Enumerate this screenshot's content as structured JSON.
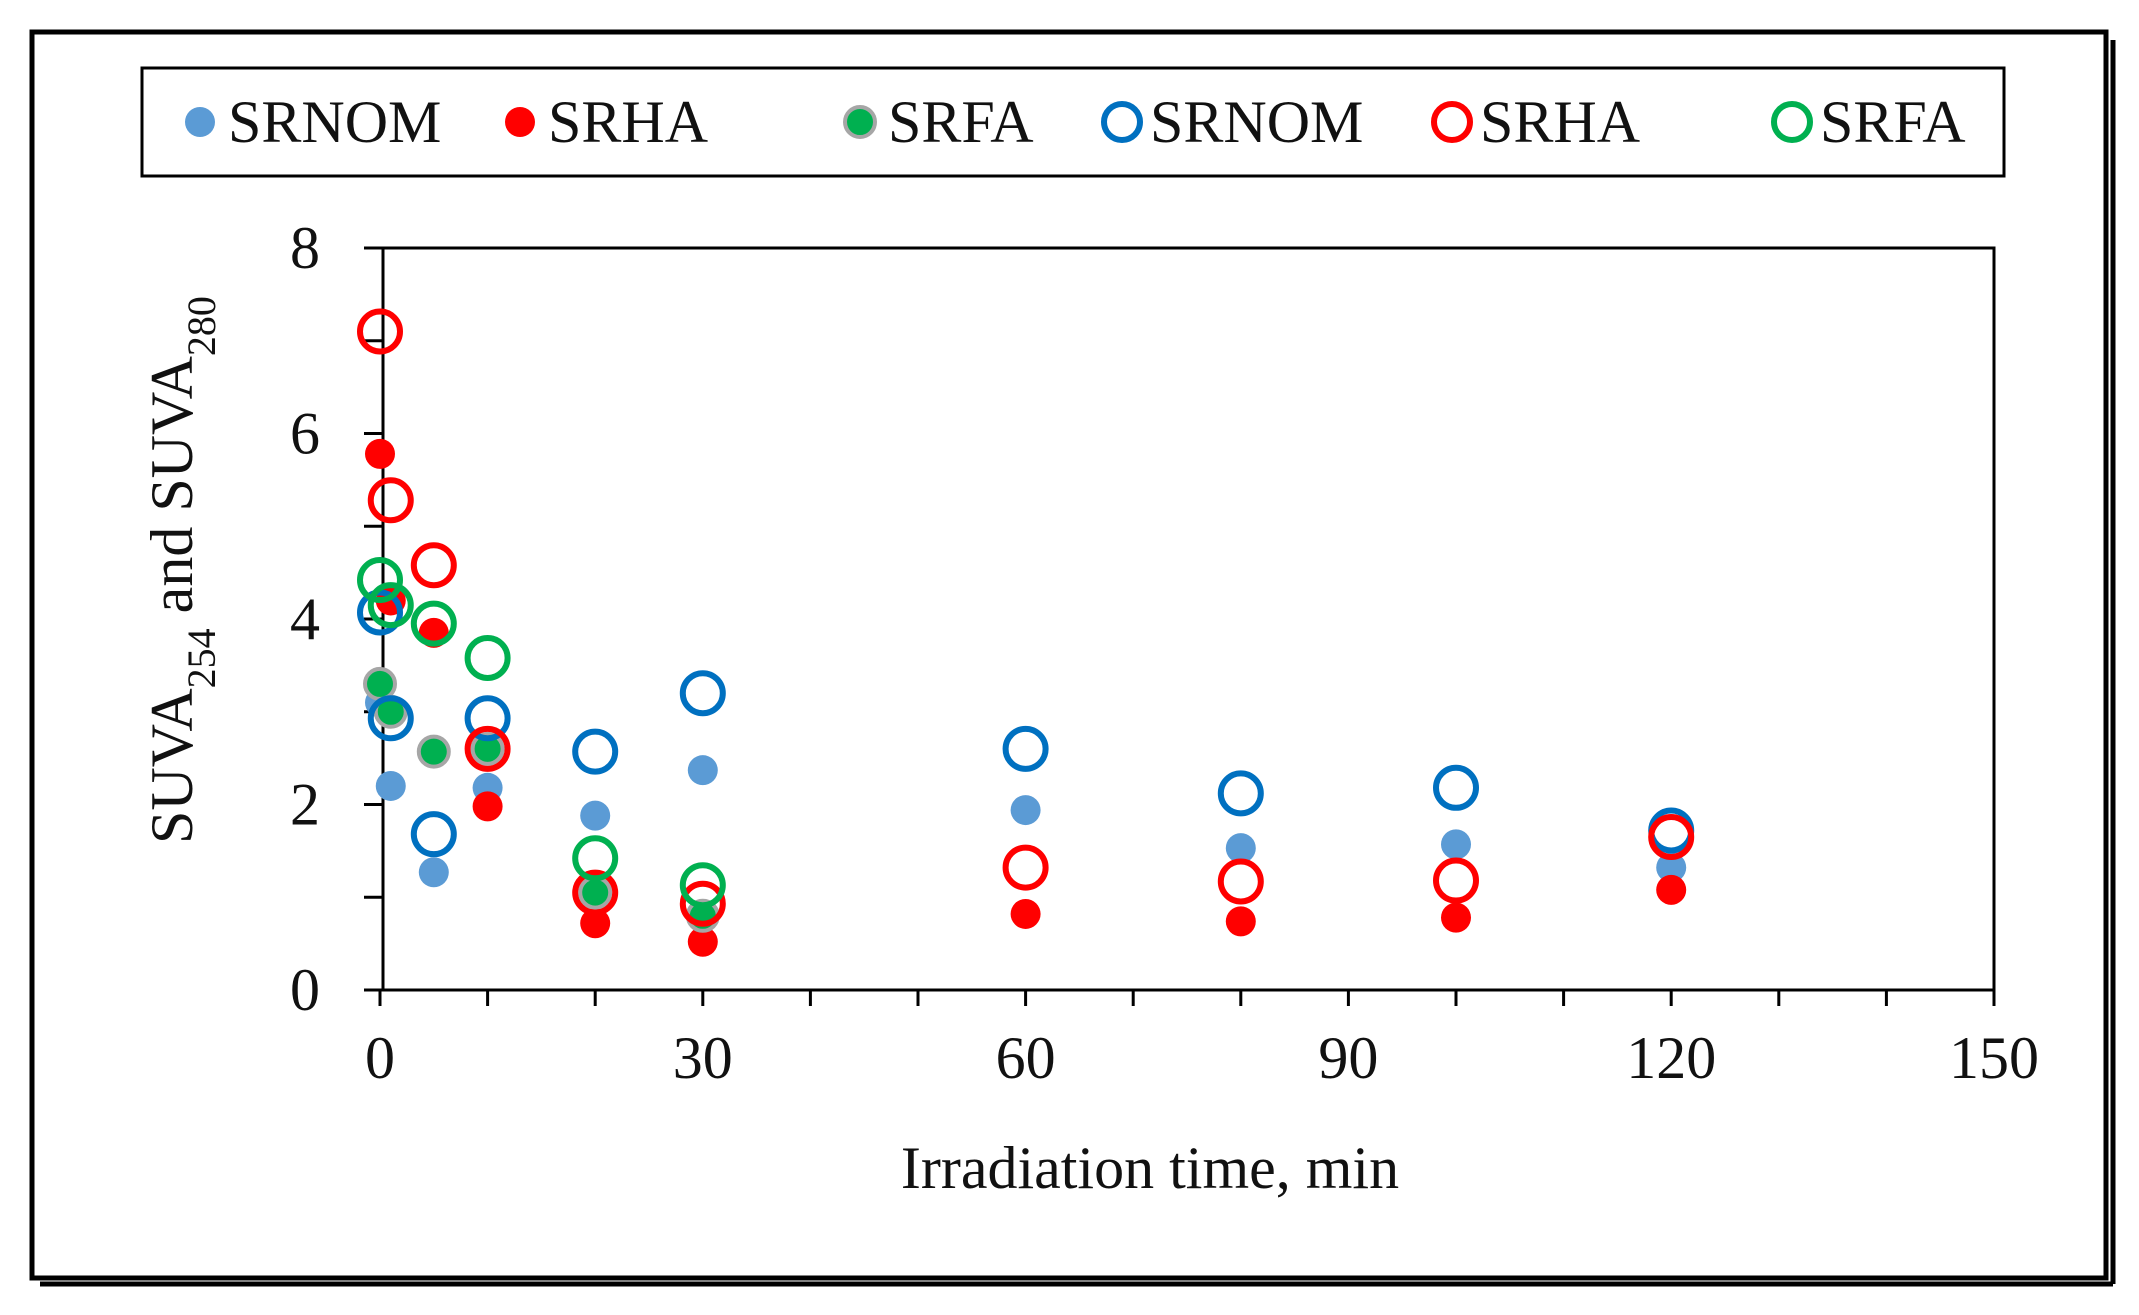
{
  "chart_data": {
    "type": "scatter",
    "xlabel": "Irradiation time, min",
    "ylabel_parts": {
      "a": "SUVA",
      "a_sub": "254",
      "mid": " and SUVA",
      "b_sub": "280"
    },
    "xlim": [
      0,
      150
    ],
    "ylim": [
      0,
      8
    ],
    "x_ticks": [
      0,
      30,
      60,
      90,
      120,
      150
    ],
    "x_tick_labels": [
      "0",
      "30",
      "60",
      "90",
      "120",
      "150"
    ],
    "x_minor_step": 10,
    "y_ticks": [
      0,
      2,
      4,
      6,
      8
    ],
    "y_tick_labels": [
      "0",
      "2",
      "4",
      "6",
      "8"
    ],
    "y_minor_step": 1,
    "legend_position": "top",
    "series": [
      {
        "name": "SRNOM",
        "marker": "filled",
        "color": "#5b9bd5",
        "edge": "#5b9bd5",
        "points": [
          [
            0,
            3.1
          ],
          [
            1,
            2.2
          ],
          [
            5,
            1.27
          ],
          [
            10,
            2.18
          ],
          [
            20,
            1.88
          ],
          [
            30,
            2.37
          ],
          [
            60,
            1.94
          ],
          [
            80,
            1.53
          ],
          [
            100,
            1.57
          ],
          [
            120,
            1.32
          ]
        ]
      },
      {
        "name": "SRHA",
        "marker": "filled",
        "color": "#ff0000",
        "edge": "#ff0000",
        "points": [
          [
            0,
            5.78
          ],
          [
            1,
            4.2
          ],
          [
            5,
            3.85
          ],
          [
            10,
            1.98
          ],
          [
            20,
            0.72
          ],
          [
            30,
            0.52
          ],
          [
            60,
            0.82
          ],
          [
            80,
            0.74
          ],
          [
            100,
            0.78
          ],
          [
            120,
            1.08
          ]
        ]
      },
      {
        "name": "SRFA",
        "marker": "filled",
        "color": "#00b050",
        "edge": "#a6a6a6",
        "points": [
          [
            0,
            3.3
          ],
          [
            1,
            3.0
          ],
          [
            5,
            2.57
          ],
          [
            10,
            2.6
          ],
          [
            20,
            1.05
          ],
          [
            30,
            0.8
          ]
        ]
      },
      {
        "name": "SRNOM",
        "marker": "open",
        "color": "#0070c0",
        "edge": "#0070c0",
        "points": [
          [
            0,
            4.07
          ],
          [
            1,
            2.93
          ],
          [
            5,
            1.68
          ],
          [
            10,
            2.93
          ],
          [
            20,
            2.57
          ],
          [
            30,
            3.2
          ],
          [
            60,
            2.6
          ],
          [
            80,
            2.12
          ],
          [
            100,
            2.18
          ],
          [
            120,
            1.72
          ]
        ]
      },
      {
        "name": "SRHA",
        "marker": "open",
        "color": "#ff0000",
        "edge": "#ff0000",
        "points": [
          [
            0,
            7.1
          ],
          [
            1,
            5.28
          ],
          [
            5,
            4.58
          ],
          [
            10,
            2.6
          ],
          [
            20,
            1.05
          ],
          [
            30,
            0.93
          ],
          [
            60,
            1.32
          ],
          [
            80,
            1.17
          ],
          [
            100,
            1.18
          ],
          [
            120,
            1.65
          ]
        ]
      },
      {
        "name": "SRFA",
        "marker": "open",
        "color": "#00b050",
        "edge": "#00b050",
        "points": [
          [
            0,
            4.42
          ],
          [
            1,
            4.15
          ],
          [
            5,
            3.95
          ],
          [
            10,
            3.58
          ],
          [
            20,
            1.42
          ],
          [
            30,
            1.13
          ]
        ]
      }
    ]
  }
}
